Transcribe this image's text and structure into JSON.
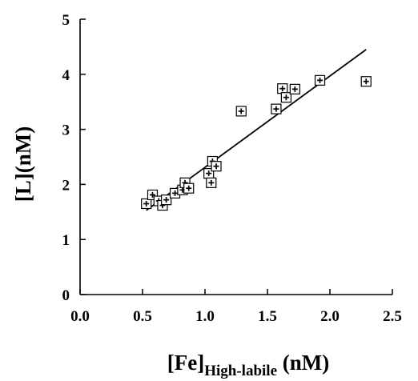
{
  "chart_data": {
    "type": "scatter",
    "xlabel": "[Fe]",
    "xlabel_subscript": "High-labile",
    "xlabel_unit": " (nM)",
    "ylabel": "[L](nM)",
    "xlim": [
      0,
      2.5
    ],
    "ylim": [
      0,
      5
    ],
    "x_ticks": [
      "0.0",
      "0.5",
      "1.0",
      "1.5",
      "2.0",
      "2.5"
    ],
    "y_ticks": [
      "0",
      "1",
      "2",
      "3",
      "4",
      "5"
    ],
    "grid": false,
    "legend": "none",
    "marker": "square-with-plus",
    "series": [
      {
        "points": [
          [
            0.53,
            1.65
          ],
          [
            0.58,
            1.81
          ],
          [
            0.63,
            1.7
          ],
          [
            0.66,
            1.62
          ],
          [
            0.69,
            1.72
          ],
          [
            0.76,
            1.84
          ],
          [
            0.82,
            1.9
          ],
          [
            0.84,
            2.03
          ],
          [
            0.87,
            1.93
          ],
          [
            1.03,
            2.2
          ],
          [
            1.05,
            2.03
          ],
          [
            1.06,
            2.42
          ],
          [
            1.09,
            2.33
          ],
          [
            1.29,
            3.33
          ],
          [
            1.57,
            3.37
          ],
          [
            1.62,
            3.74
          ],
          [
            1.65,
            3.58
          ],
          [
            1.72,
            3.73
          ],
          [
            1.92,
            3.89
          ],
          [
            2.29,
            3.87
          ]
        ]
      }
    ],
    "trendline": {
      "x": [
        0.53,
        2.29
      ],
      "y": [
        1.53,
        4.45
      ]
    }
  }
}
